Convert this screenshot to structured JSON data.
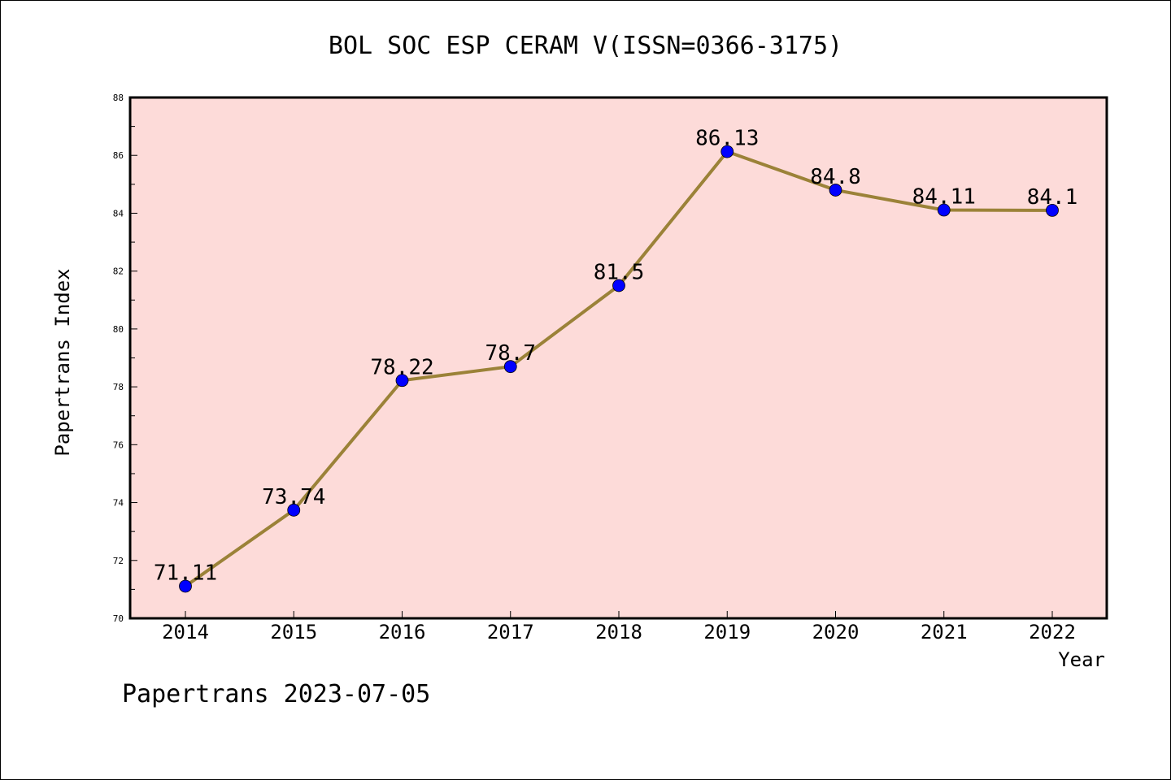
{
  "chart_data": {
    "type": "line",
    "title": "BOL SOC ESP CERAM V(ISSN=0366-3175)",
    "xlabel": "Year",
    "ylabel": "Papertrans Index",
    "x": [
      "2014",
      "2015",
      "2016",
      "2017",
      "2018",
      "2019",
      "2020",
      "2021",
      "2022"
    ],
    "series": [
      {
        "values": [
          71.11,
          73.74,
          78.22,
          78.7,
          81.5,
          86.13,
          84.8,
          84.11,
          84.1
        ],
        "labels": [
          "71.11",
          "73.74",
          "78.22",
          "78.7",
          "81.5",
          "86.13",
          "84.8",
          "84.11",
          "84.1"
        ]
      }
    ],
    "ylim": [
      70,
      88
    ],
    "yticks": [
      "70",
      "72",
      "74",
      "76",
      "78",
      "80",
      "82",
      "84",
      "86",
      "88"
    ],
    "grid": false,
    "colors": {
      "plot_background": "#fddbd9",
      "line": "#9b8238",
      "marker": "#0000ff"
    }
  },
  "footer": {
    "text": "Papertrans 2023-07-05"
  }
}
